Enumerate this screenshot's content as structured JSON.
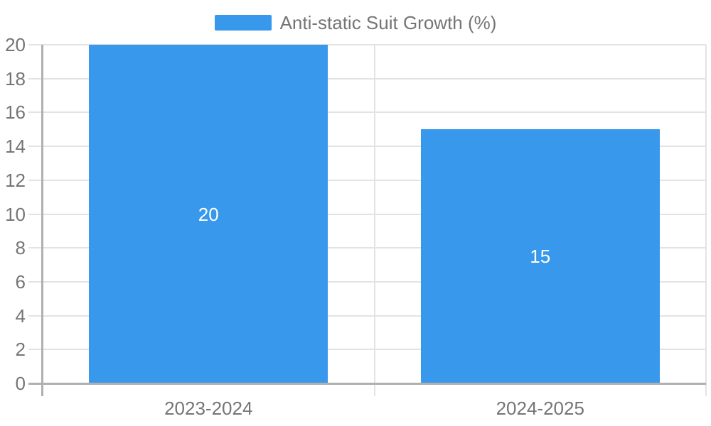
{
  "legend": {
    "label": "Anti-static Suit Growth (%)"
  },
  "chart_data": {
    "type": "bar",
    "title": "",
    "xlabel": "",
    "ylabel": "",
    "categories": [
      "2023-2024",
      "2024-2025"
    ],
    "series": [
      {
        "name": "Anti-static Suit Growth (%)",
        "values": [
          20,
          15
        ]
      }
    ],
    "value_labels": [
      "20",
      "15"
    ],
    "ylim": [
      0,
      20
    ],
    "yticks": [
      0,
      2,
      4,
      6,
      8,
      10,
      12,
      14,
      16,
      18,
      20
    ],
    "grid": true,
    "legend_position": "top-center"
  },
  "colors": {
    "bar": "#3899ec",
    "axis_text": "#757575",
    "value_label_text": "#ffffff",
    "gridline": "#e3e3e3",
    "axis_line": "#b0b0b0",
    "background": "#ffffff"
  }
}
